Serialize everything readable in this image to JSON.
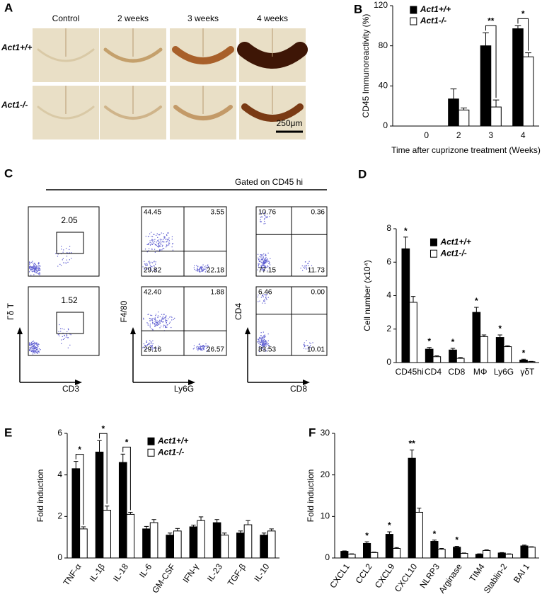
{
  "panel_a": {
    "letter": "A",
    "columns": [
      "Control",
      "2 weeks",
      "3 weeks",
      "4 weeks"
    ],
    "rows": [
      "Act1+/+",
      "Act1-/-"
    ],
    "scale_bar": "250μm"
  },
  "panel_c": {
    "letter": "C",
    "header": "Gated on CD45 hi",
    "plots": [
      {
        "y_label": "Γδ T",
        "x_label": "CD3",
        "gates": [
          [
            "2.05"
          ],
          [
            "1.52"
          ]
        ]
      },
      {
        "y_label": "F4/80",
        "x_label": "Ly6G",
        "gates": [
          [
            "44.45",
            "3.55",
            "29.82",
            "22.18"
          ],
          [
            "42.40",
            "1.88",
            "29.16",
            "26.57"
          ]
        ]
      },
      {
        "y_label": "CD4",
        "x_label": "CD8",
        "gates": [
          [
            "10.76",
            "0.36",
            "77.15",
            "11.73"
          ],
          [
            "6.46",
            "0.00",
            "83.53",
            "10.01"
          ]
        ]
      }
    ]
  },
  "chart_data": [
    {
      "type": "bar",
      "panel": "B",
      "y_label": "CD45 Immunoreactivity (%)",
      "x_label": "Time after cuprizone treatment (Weeks)",
      "categories": [
        "0",
        "2",
        "3",
        "4"
      ],
      "ylim": [
        0,
        120
      ],
      "yticks": [
        0,
        40,
        80,
        120
      ],
      "legend": "upper left",
      "brackets": true,
      "annotations": [
        null,
        null,
        "**",
        "*"
      ],
      "series": [
        {
          "name": "Act1+/+",
          "color": "#000000",
          "values": [
            0,
            27,
            80,
            97
          ],
          "errors": [
            0,
            10,
            13,
            3
          ]
        },
        {
          "name": "Act1-/-",
          "color": "#ffffff",
          "values": [
            0,
            16,
            19,
            69
          ],
          "errors": [
            0,
            2,
            7,
            4
          ]
        }
      ]
    },
    {
      "type": "bar",
      "panel": "D",
      "y_label": "Cell number (x10⁴)",
      "categories": [
        "CD45hi",
        "CD4",
        "CD8",
        "MΦ",
        "Ly6G",
        "γδT"
      ],
      "ylim": [
        0,
        8
      ],
      "yticks": [
        0,
        2,
        4,
        6,
        8
      ],
      "legend": "upper right",
      "brackets": false,
      "annotations": [
        "*",
        "*",
        "*",
        "*",
        "*",
        "*"
      ],
      "series": [
        {
          "name": "Act1+/+",
          "color": "#000000",
          "values": [
            6.8,
            0.8,
            0.75,
            3.0,
            1.5,
            0.15
          ],
          "errors": [
            0.7,
            0.1,
            0.1,
            0.3,
            0.15,
            0.05
          ]
        },
        {
          "name": "Act1-/-",
          "color": "#ffffff",
          "values": [
            3.6,
            0.35,
            0.25,
            1.55,
            0.95,
            0.05
          ],
          "errors": [
            0.35,
            0.05,
            0.05,
            0.1,
            0.05,
            0.02
          ]
        }
      ]
    },
    {
      "type": "bar",
      "panel": "E",
      "y_label": "Fold induction",
      "categories": [
        "TNF-α",
        "IL-1β",
        "IL-18",
        "IL-6",
        "GM-CSF",
        "IFN-γ",
        "IL-23",
        "TGF-β",
        "IL-10"
      ],
      "ylim": [
        0,
        6
      ],
      "yticks": [
        0,
        2,
        4,
        6
      ],
      "legend": "upper center",
      "brackets": true,
      "annotations": [
        "*",
        "*",
        "*",
        null,
        null,
        null,
        null,
        null,
        null
      ],
      "series": [
        {
          "name": "Act1+/+",
          "color": "#000000",
          "values": [
            4.3,
            5.1,
            4.6,
            1.4,
            1.1,
            1.5,
            1.7,
            1.2,
            1.1
          ],
          "errors": [
            0.35,
            0.55,
            0.4,
            0.12,
            0.1,
            0.08,
            0.15,
            0.1,
            0.1
          ]
        },
        {
          "name": "Act1-/-",
          "color": "#ffffff",
          "values": [
            1.4,
            2.3,
            2.1,
            1.7,
            1.3,
            1.8,
            1.1,
            1.6,
            1.3
          ],
          "errors": [
            0.1,
            0.2,
            0.1,
            0.15,
            0.12,
            0.18,
            0.1,
            0.2,
            0.1
          ]
        }
      ]
    },
    {
      "type": "bar",
      "panel": "F",
      "y_label": "Fold induction",
      "categories": [
        "CXCL1",
        "CCL2",
        "CXCL9",
        "CXCL10",
        "NLRP3",
        "Arginase",
        "TIM4",
        "Stablin-2",
        "BAI 1"
      ],
      "ylim": [
        0,
        30
      ],
      "yticks": [
        0,
        10,
        20,
        30
      ],
      "brackets": false,
      "annotations": [
        null,
        "*",
        "*",
        "**",
        "*",
        "*",
        null,
        null,
        null
      ],
      "series": [
        {
          "color": "#000000",
          "values": [
            1.6,
            3.5,
            5.7,
            24,
            4.0,
            2.6,
            0.9,
            1.2,
            2.9
          ],
          "errors": [
            0.1,
            0.4,
            0.6,
            2,
            0.3,
            0.2,
            0.1,
            0.1,
            0.2
          ]
        },
        {
          "color": "#ffffff",
          "values": [
            0.9,
            1.3,
            2.3,
            11,
            2.1,
            1.1,
            1.8,
            0.9,
            2.6
          ],
          "errors": [
            0.1,
            0.1,
            0.2,
            1,
            0.2,
            0.1,
            0.15,
            0.1,
            0.1
          ]
        }
      ]
    }
  ]
}
